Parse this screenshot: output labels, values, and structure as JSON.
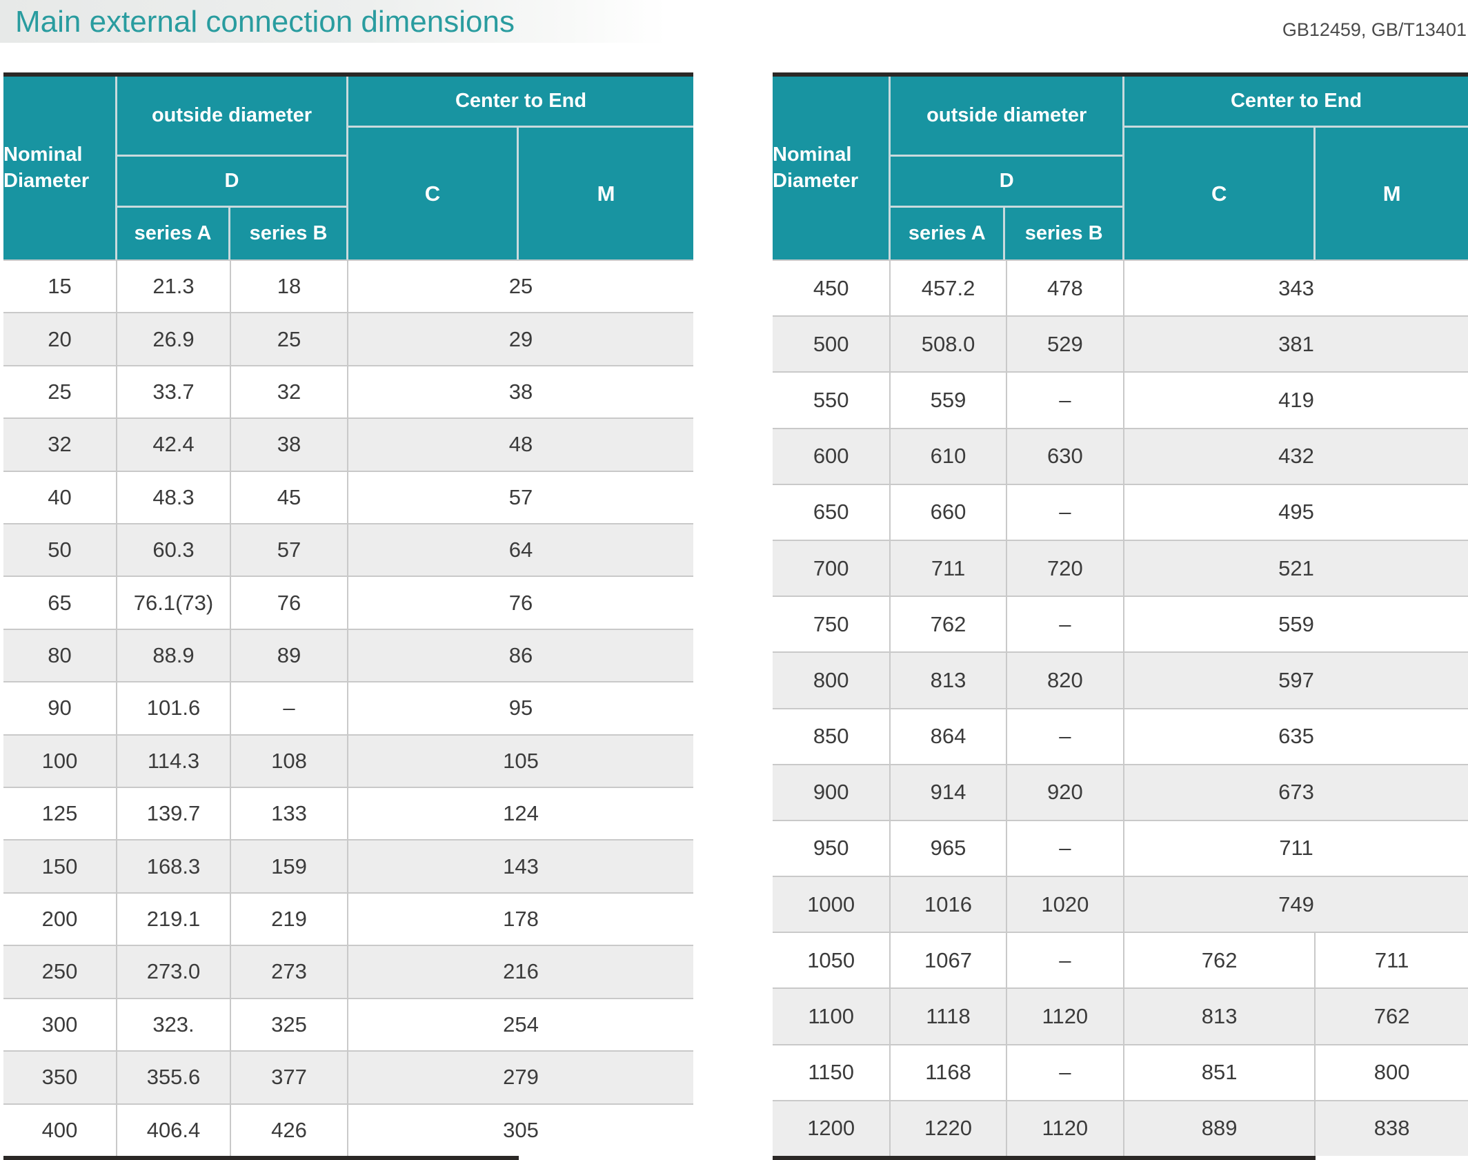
{
  "title": "Main external connection dimensions",
  "standards": "GB12459, GB/T13401",
  "colors": {
    "teal": "#1894a1",
    "title_teal": "#299c9f",
    "dark_border": "#2b2826",
    "row_line": "#c9c9c9",
    "header_line": "#c9dadd",
    "zebra": "#ededed",
    "text": "#3b3b3b"
  },
  "header": {
    "nominal_diameter": "Nominal Diameter",
    "outside_diameter": "outside diameter",
    "d": "D",
    "series_a": "series A",
    "series_b": "series B",
    "center_to_end": "Center to End",
    "c": "C",
    "m": "M"
  },
  "left_table": {
    "rows": [
      {
        "dn": "15",
        "a": "21.3",
        "b": "18",
        "cm": "25"
      },
      {
        "dn": "20",
        "a": "26.9",
        "b": "25",
        "cm": "29"
      },
      {
        "dn": "25",
        "a": "33.7",
        "b": "32",
        "cm": "38"
      },
      {
        "dn": "32",
        "a": "42.4",
        "b": "38",
        "cm": "48"
      },
      {
        "dn": "40",
        "a": "48.3",
        "b": "45",
        "cm": "57"
      },
      {
        "dn": "50",
        "a": "60.3",
        "b": "57",
        "cm": "64"
      },
      {
        "dn": "65",
        "a": "76.1(73)",
        "b": "76",
        "cm": "76"
      },
      {
        "dn": "80",
        "a": "88.9",
        "b": "89",
        "cm": "86"
      },
      {
        "dn": "90",
        "a": "101.6",
        "b": "–",
        "cm": "95"
      },
      {
        "dn": "100",
        "a": "114.3",
        "b": "108",
        "cm": "105"
      },
      {
        "dn": "125",
        "a": "139.7",
        "b": "133",
        "cm": "124"
      },
      {
        "dn": "150",
        "a": "168.3",
        "b": "159",
        "cm": "143"
      },
      {
        "dn": "200",
        "a": "219.1",
        "b": "219",
        "cm": "178"
      },
      {
        "dn": "250",
        "a": "273.0",
        "b": "273",
        "cm": "216"
      },
      {
        "dn": "300",
        "a": "323.",
        "b": "325",
        "cm": "254"
      },
      {
        "dn": "350",
        "a": "355.6",
        "b": "377",
        "cm": "279"
      },
      {
        "dn": "400",
        "a": "406.4",
        "b": "426",
        "cm": "305"
      }
    ]
  },
  "right_table": {
    "rows": [
      {
        "dn": "450",
        "a": "457.2",
        "b": "478",
        "cm": "343"
      },
      {
        "dn": "500",
        "a": "508.0",
        "b": "529",
        "cm": "381"
      },
      {
        "dn": "550",
        "a": "559",
        "b": "–",
        "cm": "419"
      },
      {
        "dn": "600",
        "a": "610",
        "b": "630",
        "cm": "432"
      },
      {
        "dn": "650",
        "a": "660",
        "b": "–",
        "cm": "495"
      },
      {
        "dn": "700",
        "a": "711",
        "b": "720",
        "cm": "521"
      },
      {
        "dn": "750",
        "a": "762",
        "b": "–",
        "cm": "559"
      },
      {
        "dn": "800",
        "a": "813",
        "b": "820",
        "cm": "597"
      },
      {
        "dn": "850",
        "a": "864",
        "b": "–",
        "cm": "635"
      },
      {
        "dn": "900",
        "a": "914",
        "b": "920",
        "cm": "673"
      },
      {
        "dn": "950",
        "a": "965",
        "b": "–",
        "cm": "711"
      },
      {
        "dn": "1000",
        "a": "1016",
        "b": "1020",
        "cm": "749"
      },
      {
        "dn": "1050",
        "a": "1067",
        "b": "–",
        "c": "762",
        "m": "711"
      },
      {
        "dn": "1100",
        "a": "1118",
        "b": "1120",
        "c": "813",
        "m": "762"
      },
      {
        "dn": "1150",
        "a": "1168",
        "b": "–",
        "c": "851",
        "m": "800"
      },
      {
        "dn": "1200",
        "a": "1220",
        "b": "1120",
        "c": "889",
        "m": "838"
      }
    ]
  }
}
